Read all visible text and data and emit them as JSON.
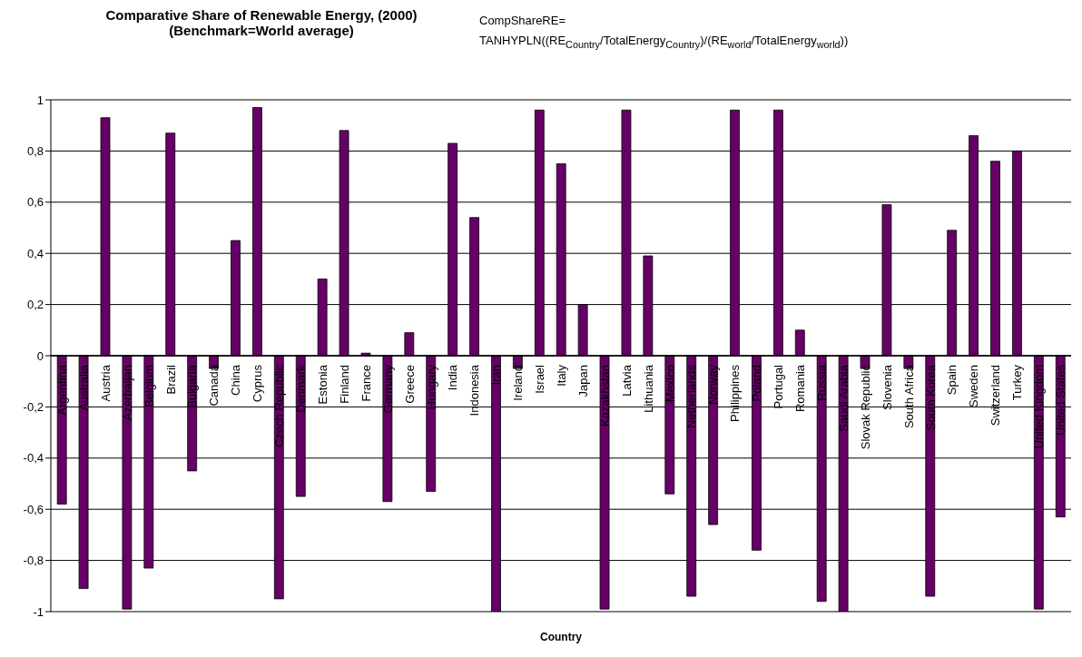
{
  "chart_data": {
    "type": "bar",
    "title": "Comparative Share of Renewable Energy, (2000)",
    "subtitle": "(Benchmark=World average)",
    "xlabel": "Country",
    "annotations": [
      "CompShareRE=",
      "TANHYPLN((RE$_{Country}$/TotalEnergy$_{Country}$)/(RE$_{world}$/TotalEnergy$_{world}$))"
    ],
    "categories": [
      "Argentina",
      "Australia",
      "Austria",
      "Azerbaijan",
      "Belgium",
      "Brazil",
      "Bulgaria",
      "Canada",
      "China",
      "Cyprus",
      "Czech Republic",
      "Denmark",
      "Estonia",
      "Finland",
      "France",
      "Germany",
      "Greece",
      "Hungary",
      "India",
      "Indonesia",
      "Iran",
      "Ireland",
      "Israel",
      "Italy",
      "Japan",
      "Kazakhstan",
      "Latvia",
      "Lithuania",
      "Mexico",
      "Netherlands",
      "Norway",
      "Philippines",
      "Poland",
      "Portugal",
      "Romania",
      "Russia",
      "Saudi Arabia",
      "Slovak Republic",
      "Slovenia",
      "South Africa",
      "South Korea",
      "Spain",
      "Sweden",
      "Switzerland",
      "Turkey",
      "United Kingdom",
      "United States"
    ],
    "values": [
      -0.58,
      -0.91,
      0.93,
      -0.99,
      -0.83,
      0.87,
      -0.45,
      -0.05,
      0.45,
      0.97,
      -0.95,
      -0.55,
      0.3,
      0.88,
      0.01,
      -0.57,
      0.09,
      -0.53,
      0.83,
      0.54,
      -1.0,
      -0.05,
      0.96,
      0.75,
      0.2,
      -0.99,
      0.96,
      0.39,
      -0.54,
      -0.94,
      -0.66,
      0.96,
      -0.76,
      0.96,
      0.1,
      -0.96,
      -1.0,
      -0.05,
      0.59,
      -0.05,
      -0.94,
      0.49,
      0.86,
      0.76,
      0.8,
      -0.99,
      -0.63
    ],
    "color": "#660066",
    "ylim": [
      -1,
      1
    ],
    "yticks": [
      -1,
      {
        "value": -0.8,
        "label": "-0,8"
      },
      {
        "value": -0.6,
        "label": "-0,6"
      },
      {
        "value": -0.4,
        "label": "-0,4"
      },
      {
        "value": -0.2,
        "label": "-0,2"
      },
      0,
      {
        "value": 0.2,
        "label": "0,2"
      },
      {
        "value": 0.4,
        "label": "0,4"
      },
      {
        "value": 0.6,
        "label": "0,6"
      },
      {
        "value": 0.8,
        "label": "0,8"
      },
      1
    ],
    "grid": "y"
  }
}
